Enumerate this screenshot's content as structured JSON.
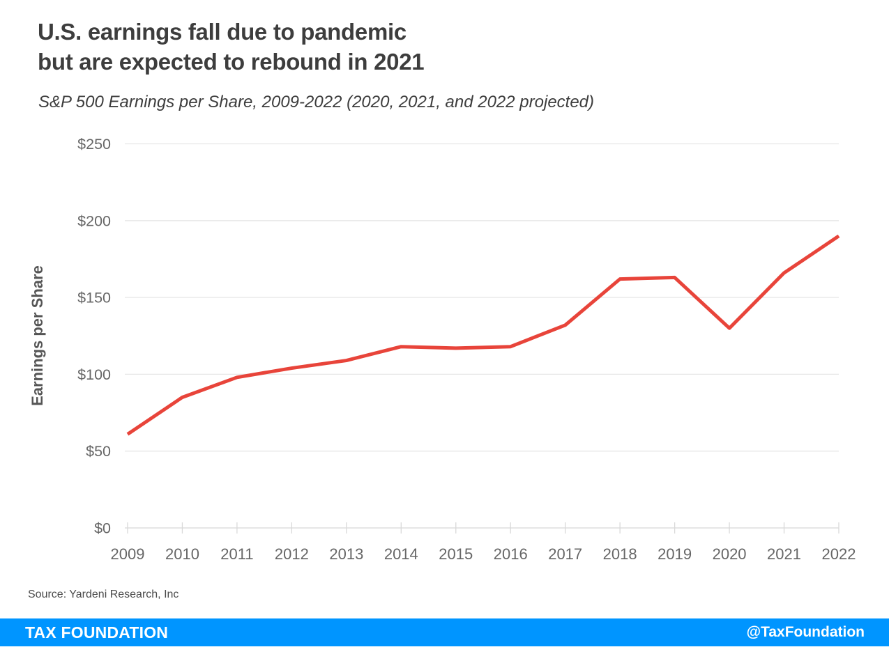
{
  "header": {
    "title_line1": "U.S. earnings fall due to pandemic",
    "title_line2": "but are expected to rebound in 2021",
    "subtitle": "S&P 500 Earnings per Share, 2009-2022 (2020, 2021, and 2022 projected)"
  },
  "chart_data": {
    "type": "line",
    "title": "U.S. earnings fall due to pandemic but are expected to rebound in 2021",
    "subtitle": "S&P 500 Earnings per Share, 2009-2022 (2020, 2021, and 2022 projected)",
    "categories": [
      "2009",
      "2010",
      "2011",
      "2012",
      "2013",
      "2014",
      "2015",
      "2016",
      "2017",
      "2018",
      "2019",
      "2020",
      "2021",
      "2022"
    ],
    "series": [
      {
        "name": "S&P 500 Earnings per Share",
        "values": [
          61,
          85,
          98,
          104,
          109,
          118,
          117,
          118,
          132,
          162,
          163,
          130,
          166,
          190
        ]
      }
    ],
    "xlabel": "",
    "ylabel": "Earnings per Share",
    "ylim": [
      0,
      250
    ],
    "ytick_step": 50,
    "ytick_prefix": "$",
    "ytick_labels": [
      "$0",
      "$50",
      "$100",
      "$150",
      "$200",
      "$250"
    ],
    "grid": true,
    "legend": "none",
    "line_color": "#e8443a",
    "gridline_color": "#e7e7e7",
    "axis_line_color": "#d6d6d6",
    "tick_label_color": "#666666",
    "axis_title_color": "#555555"
  },
  "source": {
    "text": "Source: Yardeni Research, Inc"
  },
  "footer": {
    "brand": "TAX FOUNDATION",
    "handle": "@TaxFoundation",
    "bar_color": "#0095ff",
    "text_color": "#ffffff"
  }
}
